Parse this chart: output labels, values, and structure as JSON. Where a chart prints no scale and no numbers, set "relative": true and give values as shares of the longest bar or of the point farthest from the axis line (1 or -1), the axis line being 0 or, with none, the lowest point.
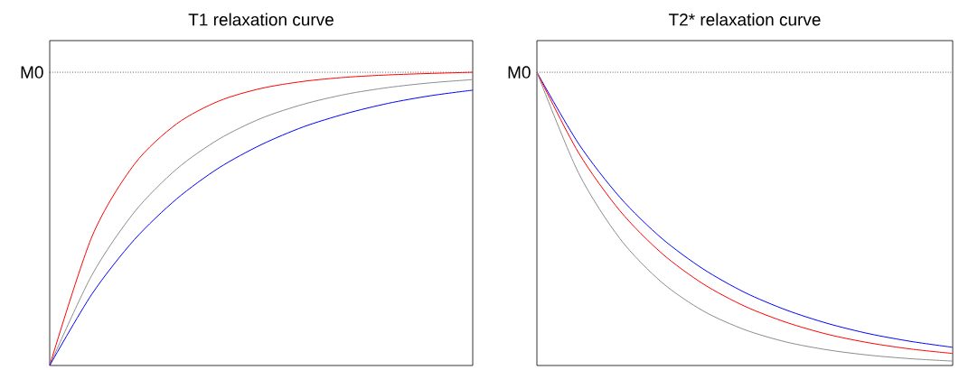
{
  "chart_data": [
    {
      "type": "line",
      "title": "T1 relaxation curve",
      "relative": true,
      "categories": [
        null,
        null,
        null,
        null,
        null,
        null,
        null,
        null,
        null,
        null,
        null
      ],
      "series": [
        {
          "color": "#ff0000",
          "values": [
            0,
            0.44,
            0.686,
            0.824,
            0.902,
            0.945,
            0.969,
            0.983,
            0.991,
            0.996,
            1
          ]
        },
        {
          "color": "#8c8c8c",
          "values": [
            0,
            0.309,
            0.523,
            0.67,
            0.772,
            0.843,
            0.891,
            0.925,
            0.948,
            0.964,
            0.975
          ]
        },
        {
          "color": "#0000ff",
          "values": [
            0,
            0.244,
            0.429,
            0.568,
            0.674,
            0.753,
            0.814,
            0.859,
            0.894,
            0.92,
            0.939
          ]
        }
      ],
      "ref_lines": [
        {
          "axis": "y",
          "value": 1,
          "label": "M0",
          "line_style": "dotted",
          "color": "#000000"
        }
      ],
      "line_style": "solid",
      "marker": "none"
    },
    {
      "type": "line",
      "title": "T2* relaxation curve",
      "relative": true,
      "categories": [
        null,
        null,
        null,
        null,
        null,
        null,
        null,
        null,
        null,
        null,
        null
      ],
      "series": [
        {
          "color": "#0000ff",
          "values": [
            1,
            0.757,
            0.573,
            0.434,
            0.329,
            0.249,
            0.189,
            0.143,
            0.108,
            0.082,
            0.062
          ]
        },
        {
          "color": "#ff0000",
          "values": [
            1,
            0.726,
            0.527,
            0.383,
            0.278,
            0.202,
            0.147,
            0.106,
            0.077,
            0.056,
            0.041
          ]
        },
        {
          "color": "#8c8c8c",
          "values": [
            1,
            0.657,
            0.432,
            0.284,
            0.186,
            0.122,
            0.08,
            0.053,
            0.035,
            0.023,
            0.015
          ]
        }
      ],
      "ref_lines": [
        {
          "axis": "y",
          "value": 1,
          "label": "M0",
          "line_style": "dotted",
          "color": "#000000"
        }
      ],
      "line_style": "solid",
      "marker": "none"
    }
  ]
}
